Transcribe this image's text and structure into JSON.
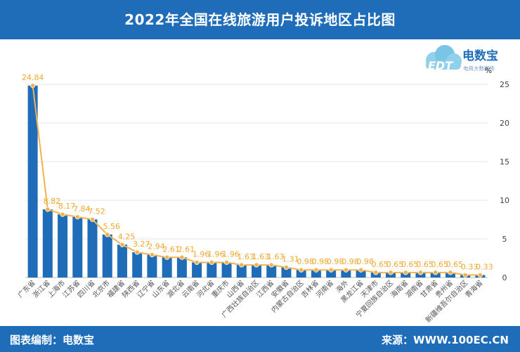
{
  "header": {
    "title": "2022年全国在线旅游用户投诉地区占比图"
  },
  "logo": {
    "name": "电数宝",
    "sub": "电商大数据库",
    "mark": "EDT"
  },
  "footer": {
    "editor": "图表编制：电数宝",
    "source": "来源：WWW.100EC.CN"
  },
  "colors": {
    "bar": "#1f6cb9",
    "line": "#f4b24c",
    "label": "#f0a830",
    "header": "#1f6cb9"
  },
  "chart_data": {
    "type": "bar",
    "title": "2022年全国在线旅游用户投诉地区占比图",
    "ylabel": "%",
    "ylim": [
      0,
      25
    ],
    "yticks": [
      0,
      5,
      10,
      15,
      20,
      25
    ],
    "y_axis_position": "right",
    "grid": true,
    "categories": [
      "广东省",
      "浙江省",
      "上海市",
      "江苏省",
      "四川省",
      "北京市",
      "福建省",
      "陕西省",
      "辽宁省",
      "山东省",
      "湖北省",
      "云南省",
      "河北省",
      "重庆市",
      "山西省",
      "广西壮族自治区",
      "江西省",
      "安徽省",
      "内蒙古自治区",
      "吉林省",
      "河南省",
      "海外",
      "黑龙江省",
      "天津市",
      "宁夏回族自治区",
      "海南省",
      "湖南省",
      "甘肃省",
      "贵州省",
      "新疆维吾尔自治区",
      "青海省"
    ],
    "values": [
      24.84,
      8.82,
      8.17,
      7.84,
      7.52,
      5.56,
      4.25,
      3.27,
      2.94,
      2.61,
      2.61,
      1.96,
      1.96,
      1.96,
      1.63,
      1.63,
      1.63,
      1.31,
      0.98,
      0.98,
      0.98,
      0.98,
      0.98,
      0.65,
      0.65,
      0.65,
      0.65,
      0.65,
      0.65,
      0.33,
      0.33
    ],
    "overlay": "line with markers, same values"
  }
}
